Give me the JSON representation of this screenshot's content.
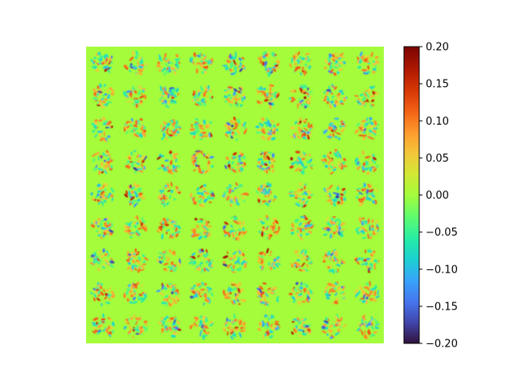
{
  "chart_data": {
    "type": "heatmap",
    "title": "",
    "xlabel": "",
    "ylabel": "",
    "grid_rows": 9,
    "grid_cols": 9,
    "description_of_tiles": "81 small filter-weight images arranged in a 9x9 grid",
    "colormap": "turbo",
    "background_value": 0.0,
    "value_range": [
      -0.2,
      0.2
    ],
    "colorbar": {
      "position": "right",
      "ticks": [
        {
          "value": 0.2,
          "label": "0.20"
        },
        {
          "value": 0.15,
          "label": "0.15"
        },
        {
          "value": 0.1,
          "label": "0.10"
        },
        {
          "value": 0.05,
          "label": "0.05"
        },
        {
          "value": 0.0,
          "label": "0.00"
        },
        {
          "value": -0.05,
          "label": "−0.05"
        },
        {
          "value": -0.1,
          "label": "−0.10"
        },
        {
          "value": -0.15,
          "label": "−0.15"
        },
        {
          "value": -0.2,
          "label": "−0.20"
        }
      ]
    }
  }
}
